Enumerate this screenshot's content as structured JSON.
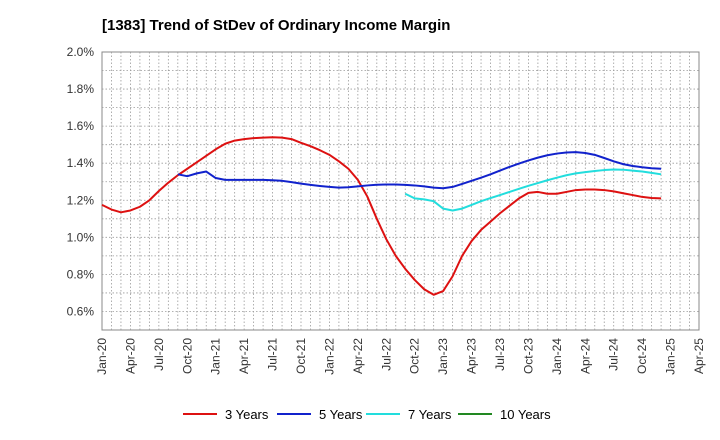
{
  "chart_data": {
    "type": "line",
    "title": "[1383]  Trend of StDev of Ordinary Income Margin",
    "xlabel": "",
    "ylabel": "",
    "ylim": [
      0.5,
      2.0
    ],
    "y_ticks": [
      0.6,
      0.8,
      1.0,
      1.2,
      1.4,
      1.6,
      1.8,
      2.0
    ],
    "y_tick_labels": [
      "0.6%",
      "0.8%",
      "1.0%",
      "1.2%",
      "1.4%",
      "1.6%",
      "1.8%",
      "2.0%"
    ],
    "x_range": [
      "2020-01",
      "2025-04"
    ],
    "x_tick_labels": [
      "Jan-20",
      "Apr-20",
      "Jul-20",
      "Oct-20",
      "Jan-21",
      "Apr-21",
      "Jul-21",
      "Oct-21",
      "Jan-22",
      "Apr-22",
      "Jul-22",
      "Oct-22",
      "Jan-23",
      "Apr-23",
      "Jul-23",
      "Oct-23",
      "Jan-24",
      "Apr-24",
      "Jul-24",
      "Oct-24",
      "Jan-25",
      "Apr-25"
    ],
    "grid": true,
    "legend_position": "bottom",
    "series": [
      {
        "name": "3 Years",
        "color": "#dd1111",
        "points": [
          [
            "2020-01",
            1.175
          ],
          [
            "2020-02",
            1.15
          ],
          [
            "2020-03",
            1.135
          ],
          [
            "2020-04",
            1.145
          ],
          [
            "2020-05",
            1.165
          ],
          [
            "2020-06",
            1.2
          ],
          [
            "2020-07",
            1.25
          ],
          [
            "2020-08",
            1.295
          ],
          [
            "2020-09",
            1.335
          ],
          [
            "2020-10",
            1.37
          ],
          [
            "2020-11",
            1.405
          ],
          [
            "2020-12",
            1.44
          ],
          [
            "2021-01",
            1.475
          ],
          [
            "2021-02",
            1.505
          ],
          [
            "2021-03",
            1.522
          ],
          [
            "2021-04",
            1.53
          ],
          [
            "2021-05",
            1.535
          ],
          [
            "2021-06",
            1.538
          ],
          [
            "2021-07",
            1.54
          ],
          [
            "2021-08",
            1.538
          ],
          [
            "2021-09",
            1.53
          ],
          [
            "2021-10",
            1.51
          ],
          [
            "2021-11",
            1.492
          ],
          [
            "2021-12",
            1.47
          ],
          [
            "2022-01",
            1.445
          ],
          [
            "2022-02",
            1.41
          ],
          [
            "2022-03",
            1.37
          ],
          [
            "2022-04",
            1.31
          ],
          [
            "2022-05",
            1.22
          ],
          [
            "2022-06",
            1.1
          ],
          [
            "2022-07",
            0.99
          ],
          [
            "2022-08",
            0.9
          ],
          [
            "2022-09",
            0.83
          ],
          [
            "2022-10",
            0.77
          ],
          [
            "2022-11",
            0.72
          ],
          [
            "2022-12",
            0.69
          ],
          [
            "2023-01",
            0.71
          ],
          [
            "2023-02",
            0.79
          ],
          [
            "2023-03",
            0.9
          ],
          [
            "2023-04",
            0.98
          ],
          [
            "2023-05",
            1.04
          ],
          [
            "2023-06",
            1.085
          ],
          [
            "2023-07",
            1.13
          ],
          [
            "2023-08",
            1.17
          ],
          [
            "2023-09",
            1.21
          ],
          [
            "2023-10",
            1.24
          ],
          [
            "2023-11",
            1.245
          ],
          [
            "2023-12",
            1.235
          ],
          [
            "2024-01",
            1.235
          ],
          [
            "2024-02",
            1.245
          ],
          [
            "2024-03",
            1.255
          ],
          [
            "2024-04",
            1.258
          ],
          [
            "2024-05",
            1.258
          ],
          [
            "2024-06",
            1.255
          ],
          [
            "2024-07",
            1.248
          ],
          [
            "2024-08",
            1.238
          ],
          [
            "2024-09",
            1.228
          ],
          [
            "2024-10",
            1.218
          ],
          [
            "2024-11",
            1.212
          ],
          [
            "2024-12",
            1.21
          ]
        ]
      },
      {
        "name": "5 Years",
        "color": "#1122cc",
        "points": [
          [
            "2020-09",
            1.34
          ],
          [
            "2020-10",
            1.33
          ],
          [
            "2020-11",
            1.345
          ],
          [
            "2020-12",
            1.355
          ],
          [
            "2021-01",
            1.32
          ],
          [
            "2021-02",
            1.31
          ],
          [
            "2021-03",
            1.31
          ],
          [
            "2021-04",
            1.31
          ],
          [
            "2021-05",
            1.31
          ],
          [
            "2021-06",
            1.31
          ],
          [
            "2021-07",
            1.308
          ],
          [
            "2021-08",
            1.305
          ],
          [
            "2021-09",
            1.298
          ],
          [
            "2021-10",
            1.29
          ],
          [
            "2021-11",
            1.283
          ],
          [
            "2021-12",
            1.277
          ],
          [
            "2022-01",
            1.272
          ],
          [
            "2022-02",
            1.268
          ],
          [
            "2022-03",
            1.27
          ],
          [
            "2022-04",
            1.275
          ],
          [
            "2022-05",
            1.28
          ],
          [
            "2022-06",
            1.284
          ],
          [
            "2022-07",
            1.285
          ],
          [
            "2022-08",
            1.285
          ],
          [
            "2022-09",
            1.283
          ],
          [
            "2022-10",
            1.28
          ],
          [
            "2022-11",
            1.275
          ],
          [
            "2022-12",
            1.268
          ],
          [
            "2023-01",
            1.265
          ],
          [
            "2023-02",
            1.272
          ],
          [
            "2023-03",
            1.288
          ],
          [
            "2023-04",
            1.305
          ],
          [
            "2023-05",
            1.322
          ],
          [
            "2023-06",
            1.34
          ],
          [
            "2023-07",
            1.36
          ],
          [
            "2023-08",
            1.38
          ],
          [
            "2023-09",
            1.398
          ],
          [
            "2023-10",
            1.415
          ],
          [
            "2023-11",
            1.43
          ],
          [
            "2023-12",
            1.443
          ],
          [
            "2024-01",
            1.452
          ],
          [
            "2024-02",
            1.458
          ],
          [
            "2024-03",
            1.46
          ],
          [
            "2024-04",
            1.455
          ],
          [
            "2024-05",
            1.445
          ],
          [
            "2024-06",
            1.428
          ],
          [
            "2024-07",
            1.41
          ],
          [
            "2024-08",
            1.395
          ],
          [
            "2024-09",
            1.385
          ],
          [
            "2024-10",
            1.378
          ],
          [
            "2024-11",
            1.373
          ],
          [
            "2024-12",
            1.37
          ]
        ]
      },
      {
        "name": "7 Years",
        "color": "#22dddd",
        "points": [
          [
            "2022-09",
            1.235
          ],
          [
            "2022-10",
            1.21
          ],
          [
            "2022-11",
            1.205
          ],
          [
            "2022-12",
            1.195
          ],
          [
            "2023-01",
            1.155
          ],
          [
            "2023-02",
            1.145
          ],
          [
            "2023-03",
            1.155
          ],
          [
            "2023-04",
            1.175
          ],
          [
            "2023-05",
            1.195
          ],
          [
            "2023-06",
            1.212
          ],
          [
            "2023-07",
            1.228
          ],
          [
            "2023-08",
            1.245
          ],
          [
            "2023-09",
            1.262
          ],
          [
            "2023-10",
            1.278
          ],
          [
            "2023-11",
            1.293
          ],
          [
            "2023-12",
            1.308
          ],
          [
            "2024-01",
            1.322
          ],
          [
            "2024-02",
            1.335
          ],
          [
            "2024-03",
            1.345
          ],
          [
            "2024-04",
            1.352
          ],
          [
            "2024-05",
            1.358
          ],
          [
            "2024-06",
            1.363
          ],
          [
            "2024-07",
            1.366
          ],
          [
            "2024-08",
            1.365
          ],
          [
            "2024-09",
            1.36
          ],
          [
            "2024-10",
            1.355
          ],
          [
            "2024-11",
            1.348
          ],
          [
            "2024-12",
            1.34
          ]
        ]
      },
      {
        "name": "10 Years",
        "color": "#228822",
        "points": []
      }
    ]
  }
}
